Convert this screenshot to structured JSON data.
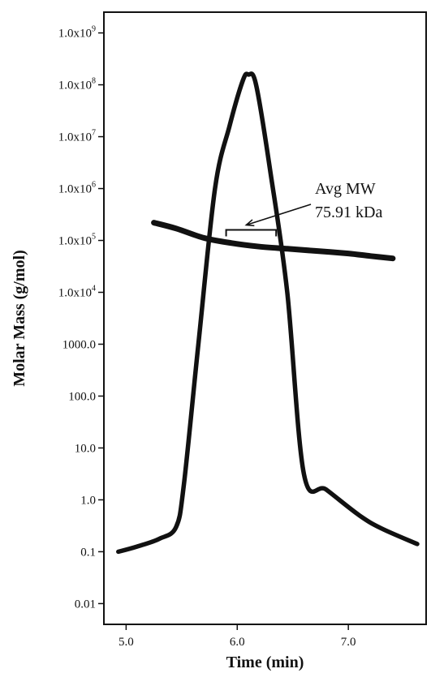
{
  "chart_data": {
    "type": "line",
    "title": "",
    "xlabel": "Time (min)",
    "ylabel": "Molar Mass (g/mol)",
    "xlim": [
      4.8,
      7.7
    ],
    "ylim_log10": [
      -2.4,
      9.4
    ],
    "yscale": "log",
    "grid": false,
    "xticks": [
      {
        "value": 5.0,
        "label": "5.0"
      },
      {
        "value": 6.0,
        "label": "6.0"
      },
      {
        "value": 7.0,
        "label": "7.0"
      }
    ],
    "yticks": [
      {
        "log": 9,
        "label": "1.0x10",
        "exp": "9"
      },
      {
        "log": 8,
        "label": "1.0x10",
        "exp": "8"
      },
      {
        "log": 7,
        "label": "1.0x10",
        "exp": "7"
      },
      {
        "log": 6,
        "label": "1.0x10",
        "exp": "6"
      },
      {
        "log": 5,
        "label": "1.0x10",
        "exp": "5"
      },
      {
        "log": 4,
        "label": "1.0x10",
        "exp": "4"
      },
      {
        "log": 3,
        "label": "1000.0",
        "exp": ""
      },
      {
        "log": 2,
        "label": "100.0",
        "exp": ""
      },
      {
        "log": 1,
        "label": "10.0",
        "exp": ""
      },
      {
        "log": 0,
        "label": "1.0",
        "exp": ""
      },
      {
        "log": -1,
        "label": "0.1",
        "exp": ""
      },
      {
        "log": -2,
        "label": "0.01",
        "exp": ""
      }
    ],
    "series": [
      {
        "name": "",
        "role": "detector-peak",
        "points": [
          [
            4.93,
            0.1
          ],
          [
            5.1,
            0.126
          ],
          [
            5.3,
            0.178
          ],
          [
            5.45,
            0.3
          ],
          [
            5.52,
            2.0
          ],
          [
            5.65,
            1000
          ],
          [
            5.8,
            1000000.0
          ],
          [
            5.93,
            15800000.0
          ],
          [
            6.05,
            120000000.0
          ],
          [
            6.1,
            158000000.0
          ],
          [
            6.17,
            100000000.0
          ],
          [
            6.3,
            2000000.0
          ],
          [
            6.45,
            10000.0
          ],
          [
            6.6,
            3.16
          ],
          [
            6.8,
            1.58
          ],
          [
            7.1,
            0.5
          ],
          [
            7.3,
            0.28
          ],
          [
            7.62,
            0.141
          ]
        ]
      },
      {
        "name": "",
        "role": "molar-mass",
        "points": [
          [
            5.25,
            220000.0
          ],
          [
            5.45,
            170000.0
          ],
          [
            5.7,
            112000.0
          ],
          [
            5.95,
            89000.0
          ],
          [
            6.2,
            76000.0
          ],
          [
            6.45,
            69000.0
          ],
          [
            6.7,
            63000.0
          ],
          [
            7.0,
            56000.0
          ],
          [
            7.2,
            50000.0
          ],
          [
            7.4,
            45000.0
          ]
        ]
      }
    ],
    "annotations": [
      {
        "line1": "Avg MW",
        "line2": "75.91 kDa",
        "bracket_x": [
          5.9,
          6.35
        ],
        "bracket_y": 160000.0
      }
    ]
  }
}
